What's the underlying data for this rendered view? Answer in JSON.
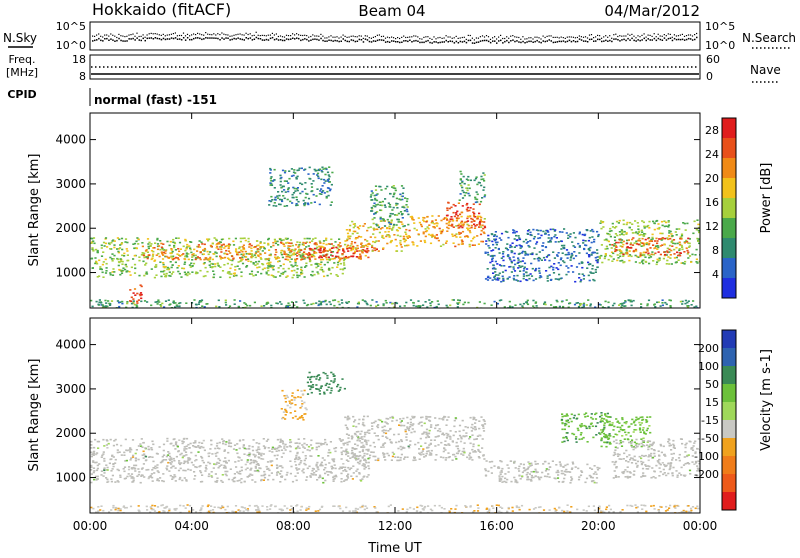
{
  "header": {
    "station": "Hokkaido (fitACF)",
    "beam": "Beam 04",
    "date": "04/Mar/2012"
  },
  "top_panels": {
    "nsky_label": "N.Sky",
    "nsearch_label": "N.Search",
    "nsky_ticks": [
      "10^5",
      "10^0"
    ],
    "nsearch_ticks": [
      "10^5",
      "10^0"
    ],
    "freq_label_1": "Freq.",
    "freq_label_2": "[MHz]",
    "freq_ticks": [
      "18",
      "8"
    ],
    "nave_label": "Nave",
    "nave_ticks": [
      "60",
      "0"
    ],
    "cpid_label": "CPID",
    "cpid_value": "normal (fast) -151"
  },
  "colors": {
    "power_scale": [
      "#1f2fe0",
      "#2a64c8",
      "#2f8a6f",
      "#4aa94a",
      "#a6d03c",
      "#f2c21b",
      "#f08a16",
      "#e8501a",
      "#e01d1d"
    ],
    "velocity_scale": [
      "#223bb5",
      "#2e63b0",
      "#3a8a55",
      "#6cc13a",
      "#9fd85a",
      "#c9c9c4",
      "#f0a21e",
      "#f07d1a",
      "#ee5a1a",
      "#e01d1d"
    ],
    "ground_scatter": "#bdbdb8"
  },
  "chart_data": [
    {
      "type": "heatmap",
      "title": "Power",
      "xlabel": "",
      "ylabel": "Slant Range [km]",
      "x_ticks": [
        "00:00",
        "04:00",
        "08:00",
        "12:00",
        "16:00",
        "20:00",
        "00:00"
      ],
      "y_ticks": [
        "1000",
        "2000",
        "3000",
        "4000"
      ],
      "xlim": [
        0,
        24
      ],
      "ylim": [
        200,
        4600
      ],
      "colorbar": {
        "label": "Power [dB]",
        "ticks": [
          "4",
          "8",
          "12",
          "16",
          "20",
          "24",
          "28"
        ],
        "range": [
          0,
          30
        ]
      },
      "series": [
        {
          "t0": 0,
          "t1": 10,
          "r0": 900,
          "r1": 1800,
          "power": 14
        },
        {
          "t0": 2,
          "t1": 11,
          "r0": 1300,
          "r1": 1700,
          "power": 22
        },
        {
          "t0": 8.5,
          "t1": 11.5,
          "r0": 1350,
          "r1": 1600,
          "power": 28
        },
        {
          "t0": 10,
          "t1": 12.5,
          "r0": 1500,
          "r1": 2200,
          "power": 18
        },
        {
          "t0": 12.5,
          "t1": 15.5,
          "r0": 1600,
          "r1": 2300,
          "power": 20
        },
        {
          "t0": 14,
          "t1": 15.5,
          "r0": 2000,
          "r1": 2600,
          "power": 26
        },
        {
          "t0": 7,
          "t1": 9.5,
          "r0": 2500,
          "r1": 3400,
          "power": 8
        },
        {
          "t0": 11,
          "t1": 12.5,
          "r0": 2000,
          "r1": 3000,
          "power": 10
        },
        {
          "t0": 14.5,
          "t1": 15.5,
          "r0": 2600,
          "r1": 3300,
          "power": 10
        },
        {
          "t0": 15.5,
          "t1": 20,
          "r0": 800,
          "r1": 2000,
          "power": 6
        },
        {
          "t0": 20,
          "t1": 24,
          "r0": 1200,
          "r1": 2200,
          "power": 14
        },
        {
          "t0": 20.5,
          "t1": 23.5,
          "r0": 1400,
          "r1": 1800,
          "power": 24
        },
        {
          "t0": 1.5,
          "t1": 2,
          "r0": 300,
          "r1": 800,
          "power": 26
        },
        {
          "t0": 0,
          "t1": 24,
          "r0": 200,
          "r1": 400,
          "power": 10
        }
      ]
    },
    {
      "type": "heatmap",
      "title": "Velocity",
      "xlabel": "Time UT",
      "ylabel": "Slant Range [km]",
      "x_ticks": [
        "00:00",
        "04:00",
        "08:00",
        "12:00",
        "16:00",
        "20:00",
        "00:00"
      ],
      "y_ticks": [
        "1000",
        "2000",
        "3000",
        "4000"
      ],
      "xlim": [
        0,
        24
      ],
      "ylim": [
        200,
        4600
      ],
      "colorbar": {
        "label": "Velocity [m s-1]",
        "ticks": [
          "200",
          "100",
          "50",
          "15",
          "-15",
          "-50",
          "-100",
          "-200"
        ],
        "range": [
          -250,
          250
        ]
      },
      "series": [
        {
          "t0": 0,
          "t1": 11,
          "r0": 900,
          "r1": 1900,
          "velocity": 0
        },
        {
          "t0": 10,
          "t1": 15.5,
          "r0": 1400,
          "r1": 2400,
          "velocity": 0
        },
        {
          "t0": 8.5,
          "t1": 10,
          "r0": 2900,
          "r1": 3400,
          "velocity": 80
        },
        {
          "t0": 7.5,
          "t1": 8.5,
          "r0": 2300,
          "r1": 3000,
          "velocity": -60
        },
        {
          "t0": 18.5,
          "t1": 20.5,
          "r0": 1800,
          "r1": 2500,
          "velocity": 40
        },
        {
          "t0": 20,
          "t1": 22,
          "r0": 1700,
          "r1": 2400,
          "velocity": 30
        },
        {
          "t0": 20.5,
          "t1": 24,
          "r0": 1000,
          "r1": 1900,
          "velocity": 0
        },
        {
          "t0": 15.5,
          "t1": 20,
          "r0": 900,
          "r1": 1400,
          "velocity": 0
        },
        {
          "t0": 0,
          "t1": 24,
          "r0": 200,
          "r1": 400,
          "velocity": -40
        }
      ]
    }
  ]
}
